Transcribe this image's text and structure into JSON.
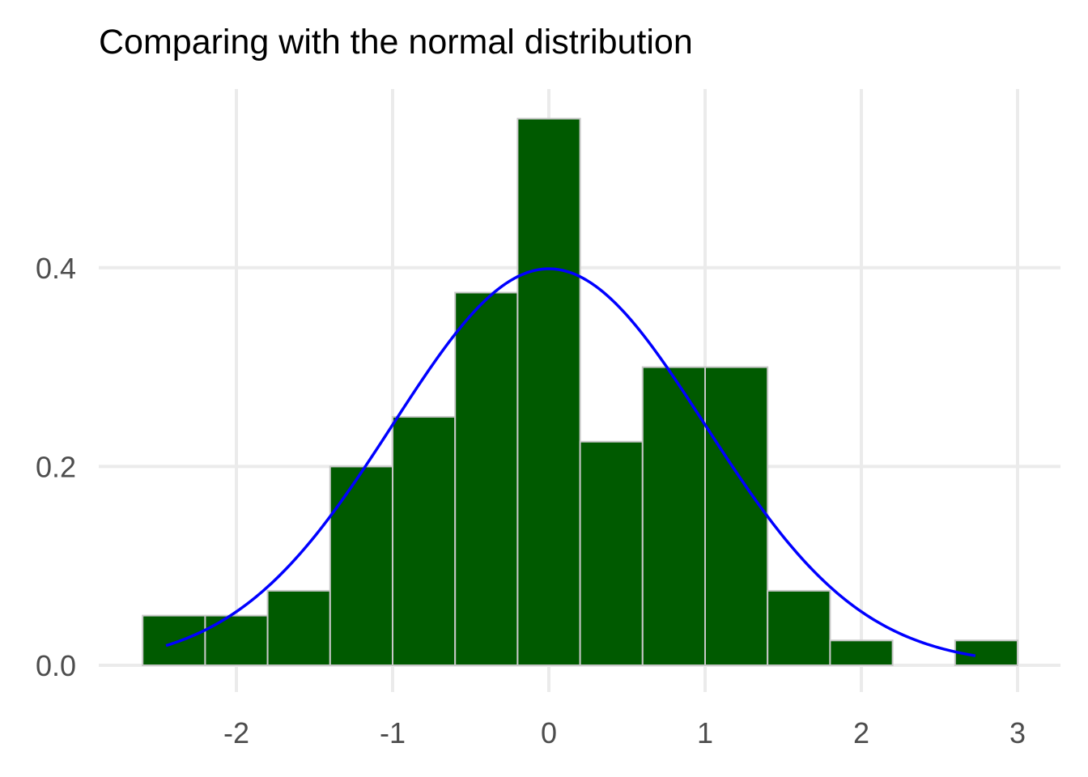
{
  "chart_data": {
    "type": "bar",
    "subtype": "histogram",
    "title": "Comparing with the normal distribution",
    "xlabel": "",
    "ylabel": "",
    "bins": [
      {
        "x0": -2.6,
        "x1": -2.2,
        "density": 0.05
      },
      {
        "x0": -2.2,
        "x1": -1.8,
        "density": 0.05
      },
      {
        "x0": -1.8,
        "x1": -1.4,
        "density": 0.075
      },
      {
        "x0": -1.4,
        "x1": -1.0,
        "density": 0.2
      },
      {
        "x0": -1.0,
        "x1": -0.6,
        "density": 0.25
      },
      {
        "x0": -0.6,
        "x1": -0.2,
        "density": 0.375
      },
      {
        "x0": -0.2,
        "x1": 0.2,
        "density": 0.55
      },
      {
        "x0": 0.2,
        "x1": 0.6,
        "density": 0.225
      },
      {
        "x0": 0.6,
        "x1": 1.0,
        "density": 0.3
      },
      {
        "x0": 1.0,
        "x1": 1.4,
        "density": 0.3
      },
      {
        "x0": 1.4,
        "x1": 1.8,
        "density": 0.075
      },
      {
        "x0": 1.8,
        "x1": 2.2,
        "density": 0.025
      },
      {
        "x0": 2.2,
        "x1": 2.6,
        "density": 0.0
      },
      {
        "x0": 2.6,
        "x1": 3.0,
        "density": 0.025
      }
    ],
    "curve": {
      "name": "normal density",
      "mean": 0,
      "sd": 1,
      "x_range": [
        -2.45,
        2.73
      ],
      "color": "#0000ff"
    },
    "xlim": [
      -2.87,
      3.13
    ],
    "ylim": [
      0,
      0.58
    ],
    "x_ticks": [
      -2,
      -1,
      0,
      1,
      2,
      3
    ],
    "x_tick_labels": [
      "-2",
      "-1",
      "0",
      "1",
      "2",
      "3"
    ],
    "y_ticks": [
      0.0,
      0.2,
      0.4
    ],
    "y_tick_labels": [
      "0.0",
      "0.2",
      "0.4"
    ],
    "grid": true,
    "bar_fill": "#005a00",
    "bar_outline": "#c8c8c8",
    "grid_color": "#ebebeb"
  }
}
